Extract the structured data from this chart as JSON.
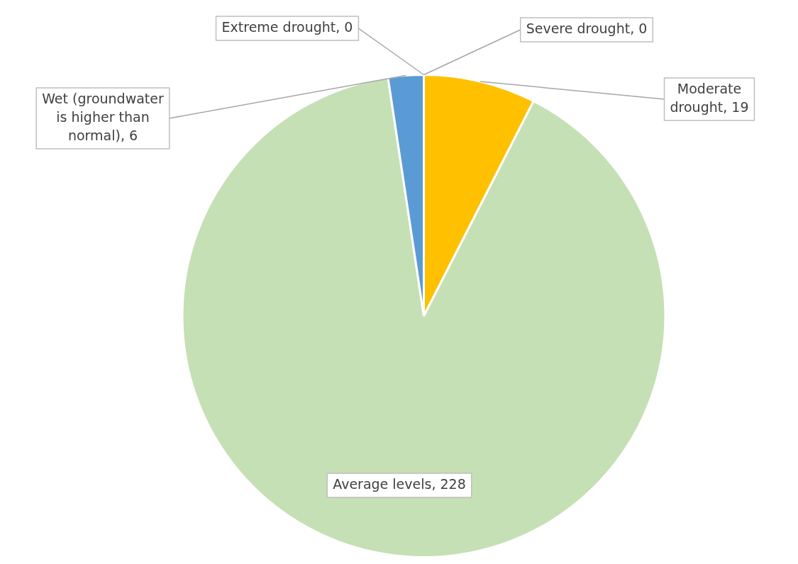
{
  "chart_data": {
    "type": "pie",
    "categories": [
      "Moderate drought",
      "Average levels",
      "Wet (groundwater is higher than normal)",
      "Extreme drought",
      "Severe drought"
    ],
    "values": [
      19,
      228,
      6,
      0,
      0
    ],
    "value_labels": [
      ", 19",
      ", 228",
      ", 6",
      ", 0",
      ", 0"
    ],
    "colors": [
      "#ffc000",
      "#c5e0b4",
      "#5b9bd5",
      "#c00000",
      "#ed7d31"
    ],
    "legend": false
  }
}
